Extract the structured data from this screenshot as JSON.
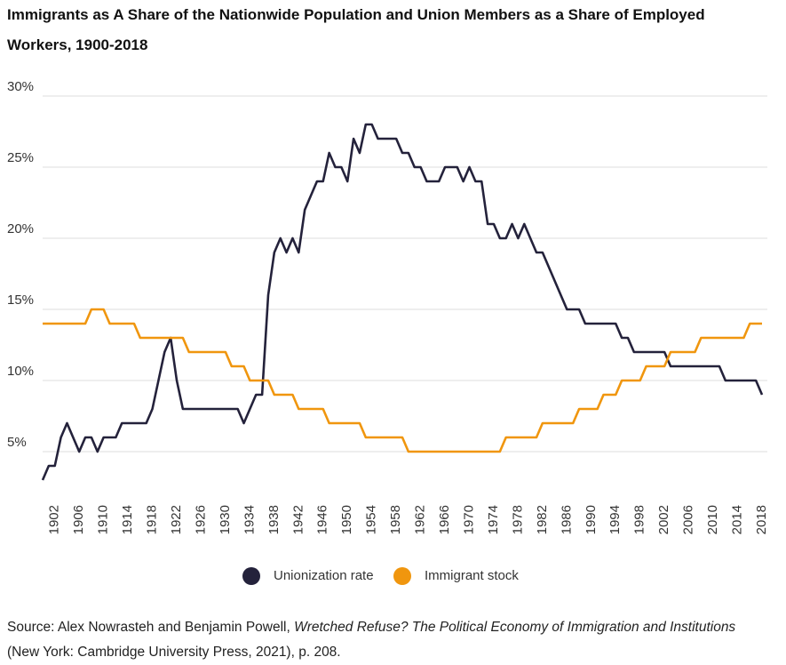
{
  "chart_data": {
    "type": "line",
    "title": "Immigrants as A Share of the Nationwide Population and Union Members as a Share of Employed Workers, 1900-2018",
    "x": [
      1900,
      1901,
      1902,
      1903,
      1904,
      1905,
      1906,
      1907,
      1908,
      1909,
      1910,
      1911,
      1912,
      1913,
      1914,
      1915,
      1916,
      1917,
      1918,
      1919,
      1920,
      1921,
      1922,
      1923,
      1924,
      1925,
      1926,
      1927,
      1928,
      1929,
      1930,
      1931,
      1932,
      1933,
      1934,
      1935,
      1936,
      1937,
      1938,
      1939,
      1940,
      1941,
      1942,
      1943,
      1944,
      1945,
      1946,
      1947,
      1948,
      1949,
      1950,
      1951,
      1952,
      1953,
      1954,
      1955,
      1956,
      1957,
      1958,
      1959,
      1960,
      1961,
      1962,
      1963,
      1964,
      1965,
      1966,
      1967,
      1968,
      1969,
      1970,
      1971,
      1972,
      1973,
      1974,
      1975,
      1976,
      1977,
      1978,
      1979,
      1980,
      1981,
      1982,
      1983,
      1984,
      1985,
      1986,
      1987,
      1988,
      1989,
      1990,
      1991,
      1992,
      1993,
      1994,
      1995,
      1996,
      1997,
      1998,
      1999,
      2000,
      2001,
      2002,
      2003,
      2004,
      2005,
      2006,
      2007,
      2008,
      2009,
      2010,
      2011,
      2012,
      2013,
      2014,
      2015,
      2016,
      2017,
      2018
    ],
    "series": [
      {
        "name": "Unionization rate",
        "color": "#24223b",
        "values": [
          3,
          4,
          4,
          6,
          7,
          6,
          5,
          6,
          6,
          5,
          6,
          6,
          6,
          7,
          7,
          7,
          7,
          7,
          8,
          10,
          12,
          13,
          10,
          8,
          8,
          8,
          8,
          8,
          8,
          8,
          8,
          8,
          8,
          7,
          8,
          9,
          9,
          16,
          19,
          20,
          19,
          20,
          19,
          22,
          23,
          24,
          24,
          26,
          25,
          25,
          24,
          27,
          26,
          28,
          28,
          27,
          27,
          27,
          27,
          26,
          26,
          25,
          25,
          24,
          24,
          24,
          25,
          25,
          25,
          24,
          25,
          24,
          24,
          21,
          21,
          20,
          20,
          21,
          20,
          21,
          20,
          19,
          19,
          18,
          17,
          16,
          15,
          15,
          15,
          14,
          14,
          14,
          14,
          14,
          14,
          13,
          13,
          12,
          12,
          12,
          12,
          12,
          12,
          11,
          11,
          11,
          11,
          11,
          11,
          11,
          11,
          11,
          10,
          10,
          10,
          10,
          10,
          10,
          9
        ]
      },
      {
        "name": "Immigrant stock",
        "color": "#f0960e",
        "values": [
          14,
          14,
          14,
          14,
          14,
          14,
          14,
          14,
          15,
          15,
          15,
          14,
          14,
          14,
          14,
          14,
          13,
          13,
          13,
          13,
          13,
          13,
          13,
          13,
          12,
          12,
          12,
          12,
          12,
          12,
          12,
          11,
          11,
          11,
          10,
          10,
          10,
          10,
          9,
          9,
          9,
          9,
          8,
          8,
          8,
          8,
          8,
          7,
          7,
          7,
          7,
          7,
          7,
          6,
          6,
          6,
          6,
          6,
          6,
          6,
          5,
          5,
          5,
          5,
          5,
          5,
          5,
          5,
          5,
          5,
          5,
          5,
          5,
          5,
          5,
          5,
          6,
          6,
          6,
          6,
          6,
          6,
          7,
          7,
          7,
          7,
          7,
          7,
          8,
          8,
          8,
          8,
          9,
          9,
          9,
          10,
          10,
          10,
          10,
          11,
          11,
          11,
          11,
          12,
          12,
          12,
          12,
          12,
          13,
          13,
          13,
          13,
          13,
          13,
          13,
          13,
          14,
          14,
          14
        ]
      }
    ],
    "xlim": [
      1900,
      2018
    ],
    "xticks": [
      1902,
      1906,
      1910,
      1914,
      1918,
      1922,
      1926,
      1930,
      1934,
      1938,
      1942,
      1946,
      1950,
      1954,
      1958,
      1962,
      1966,
      1970,
      1974,
      1978,
      1982,
      1986,
      1990,
      1994,
      1998,
      2002,
      2006,
      2010,
      2014,
      2018
    ],
    "ylim": [
      3,
      30
    ],
    "yticks": [
      {
        "value": 5,
        "label": "5%"
      },
      {
        "value": 10,
        "label": "10%"
      },
      {
        "value": 15,
        "label": "15%"
      },
      {
        "value": 20,
        "label": "20%"
      },
      {
        "value": 25,
        "label": "25%"
      },
      {
        "value": 30,
        "label": "30%"
      }
    ],
    "grid": true,
    "legend": "bottom",
    "source": {
      "prefix": "Source: Alex Nowrasteh and Benjamin Powell, ",
      "title": "Wretched Refuse? The Political Economy of Immigration and Institutions",
      "suffix": " (New York: Cambridge University Press, 2021), p. 208."
    }
  }
}
